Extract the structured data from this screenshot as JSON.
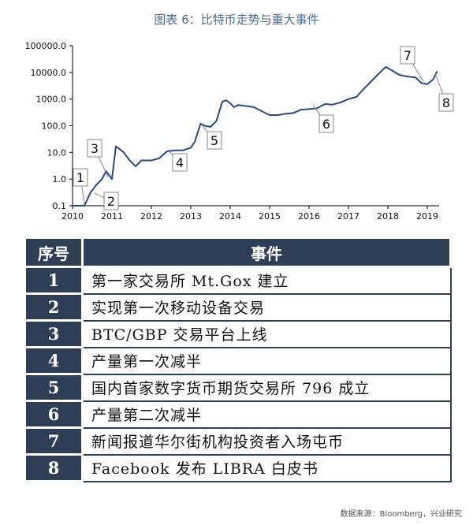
{
  "title": "图表 6：比特币走势与重大事件",
  "chart_data": {
    "type": "line",
    "title": "图表 6：比特币走势与重大事件",
    "xlabel": "",
    "ylabel": "",
    "y_scale": "log",
    "ylim": [
      0.1,
      100000
    ],
    "y_ticks": [
      "0.1",
      "1.0",
      "10.0",
      "100.0",
      "1000.0",
      "10000.0",
      "100000.0"
    ],
    "x_ticks": [
      "2010",
      "2011",
      "2012",
      "2013",
      "2014",
      "2015",
      "2016",
      "2017",
      "2018",
      "2019"
    ],
    "xlim": [
      2010,
      2019.3
    ],
    "grid": false,
    "legend": "none",
    "line_color": "#2b4a7c",
    "series": [
      {
        "x": [
          2010.0,
          2010.1,
          2010.3,
          2010.45,
          2010.6,
          2010.75,
          2010.85,
          2011.0,
          2011.1,
          2011.3,
          2011.45,
          2011.6,
          2011.75,
          2011.9,
          2012.0,
          2012.2,
          2012.4,
          2012.6,
          2012.8,
          2013.0,
          2013.1,
          2013.25,
          2013.35,
          2013.5,
          2013.65,
          2013.8,
          2013.9,
          2014.0,
          2014.1,
          2014.2,
          2014.4,
          2014.6,
          2014.8,
          2015.0,
          2015.2,
          2015.4,
          2015.6,
          2015.8,
          2016.0,
          2016.2,
          2016.4,
          2016.6,
          2016.8,
          2017.0,
          2017.2,
          2017.4,
          2017.6,
          2017.8,
          2017.95,
          2018.1,
          2018.3,
          2018.5,
          2018.7,
          2018.85,
          2019.0,
          2019.15,
          2019.25
        ],
        "y": [
          0.1,
          0.1,
          0.1,
          0.3,
          0.6,
          1.0,
          2.0,
          1.0,
          17,
          10,
          5,
          3,
          5,
          5,
          5,
          6,
          11,
          12,
          12,
          15,
          25,
          120,
          100,
          90,
          150,
          800,
          900,
          700,
          500,
          600,
          550,
          500,
          350,
          250,
          250,
          280,
          300,
          400,
          420,
          450,
          650,
          620,
          750,
          1000,
          1200,
          2500,
          5000,
          10000,
          16000,
          12000,
          8000,
          7000,
          6500,
          4000,
          3600,
          5500,
          11000
        ]
      }
    ],
    "annotations": [
      "1",
      "2",
      "3",
      "4",
      "5",
      "6",
      "7",
      "8"
    ]
  },
  "table": {
    "headers": [
      "序号",
      "事件"
    ],
    "rows": [
      {
        "no": "1",
        "event": "第一家交易所 Mt.Gox 建立"
      },
      {
        "no": "2",
        "event": "实现第一次移动设备交易"
      },
      {
        "no": "3",
        "event": "BTC/GBP 交易平台上线"
      },
      {
        "no": "4",
        "event": "产量第一次减半"
      },
      {
        "no": "5",
        "event": "国内首家数字货币期货交易所 796 成立"
      },
      {
        "no": "6",
        "event": "产量第二次减半"
      },
      {
        "no": "7",
        "event": "新闻报道华尔街机构投资者入场屯币"
      },
      {
        "no": "8",
        "event": "Facebook 发布 LIBRA 白皮书"
      }
    ]
  },
  "source": "数据来源：Bloomberg，兴业研究"
}
